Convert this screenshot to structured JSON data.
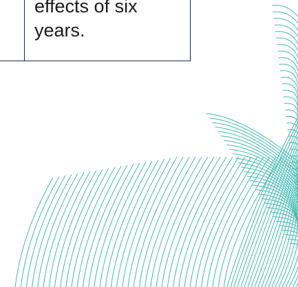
{
  "table_cell": {
    "text": "effects of six\nyears."
  },
  "colors": {
    "border": "#1a2a5e",
    "text": "#1c1c1c",
    "pattern": "#3cbcb4"
  },
  "decoration": {
    "name": "teal-arc-line-pattern"
  }
}
